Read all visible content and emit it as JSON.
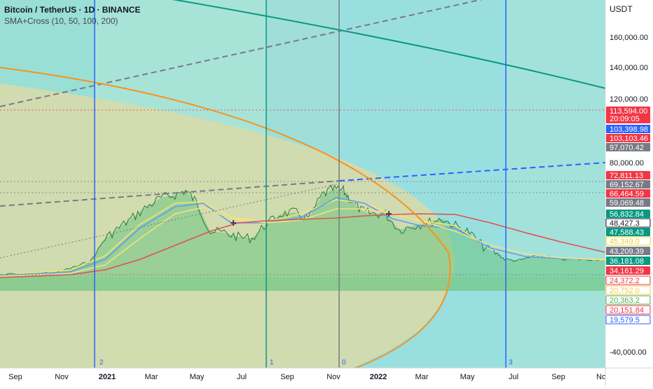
{
  "legend": {
    "symbol": "Bitcoin / TetherUS · 1D · BINANCE",
    "indicator": "SMA+Cross (10, 50, 100, 200)"
  },
  "currency": "USDT",
  "chart_data": {
    "type": "line",
    "title": "Bitcoin / TetherUS · 1D · BINANCE",
    "xlabel": "",
    "ylabel": "",
    "x_ticks": [
      "Sep",
      "Nov",
      "2021",
      "Mar",
      "May",
      "Jul",
      "Sep",
      "Nov",
      "2022",
      "Mar",
      "May",
      "Jul",
      "Sep",
      "No"
    ],
    "y_ticks": [
      "160,000.00",
      "140,000.00",
      "120,000.00",
      "80,000.00",
      "-40,000.00"
    ],
    "price_labels": [
      {
        "text": "113,594.00",
        "sub": "20:09:05",
        "bg": "#f23645",
        "fg": "#ffffff"
      },
      {
        "text": "103,398.98",
        "bg": "#2962ff",
        "fg": "#ffffff"
      },
      {
        "text": "103,103.46",
        "bg": "#f23645",
        "fg": "#ffffff"
      },
      {
        "text": "97,070.42",
        "bg": "#787b86",
        "fg": "#ffffff"
      },
      {
        "text": "72,811.13",
        "bg": "#f23645",
        "fg": "#ffffff"
      },
      {
        "text": "69,152.67",
        "bg": "#787b86",
        "fg": "#ffffff"
      },
      {
        "text": "66,464.59",
        "bg": "#f23645",
        "fg": "#ffffff"
      },
      {
        "text": "59,069.48",
        "bg": "#787b86",
        "fg": "#ffffff"
      },
      {
        "text": "56,832.84",
        "bg": "#089981",
        "fg": "#ffffff"
      },
      {
        "text": "48,427.3",
        "bg": "#ffffff",
        "fg": "#131722",
        "border": "#131722"
      },
      {
        "text": "47,588.43",
        "bg": "#089981",
        "fg": "#ffffff"
      },
      {
        "text": "45,349.0",
        "bg": "#ffffff",
        "fg": "#e3d33a",
        "border": "#e3d33a"
      },
      {
        "text": "43,209.39",
        "bg": "#787b86",
        "fg": "#ffffff"
      },
      {
        "text": "36,181.08",
        "bg": "#089981",
        "fg": "#ffffff"
      },
      {
        "text": "34,161.29",
        "bg": "#f23645",
        "fg": "#ffffff"
      },
      {
        "text": "24,372.2",
        "bg": "#ffffff",
        "fg": "#f23645",
        "border": "#f23645"
      },
      {
        "text": "20,752.0",
        "bg": "#ffffff",
        "fg": "#f2c94c",
        "border": "#f2c94c"
      },
      {
        "text": "20,363.2",
        "bg": "#ffffff",
        "fg": "#4caf50",
        "border": "#4caf50"
      },
      {
        "text": "20,151.84",
        "bg": "#ffffff",
        "fg": "#f23645",
        "border": "#f23645"
      },
      {
        "text": "19,579.5",
        "bg": "#ffffff",
        "fg": "#2962ff",
        "border": "#2962ff"
      }
    ],
    "cycle_markers": [
      "2",
      "1",
      "0",
      "3"
    ],
    "sma_series": [
      {
        "name": "SMA 10",
        "color": "#f6e46f"
      },
      {
        "name": "SMA 50",
        "color": "#5b9cf6"
      },
      {
        "name": "SMA 100",
        "color": "#f2e287"
      },
      {
        "name": "SMA 200",
        "color": "#e05252"
      }
    ],
    "colors": {
      "price_line": "#4caf50",
      "cycle_line_blue": "#2962ff",
      "cycle_line_green": "#089981",
      "cycle_line_gray": "#787b86",
      "arc_orange": "#f7931a",
      "arc_green": "#089981",
      "fill_teal": "#8fdcd6",
      "fill_olive": "#d9dba8"
    }
  }
}
